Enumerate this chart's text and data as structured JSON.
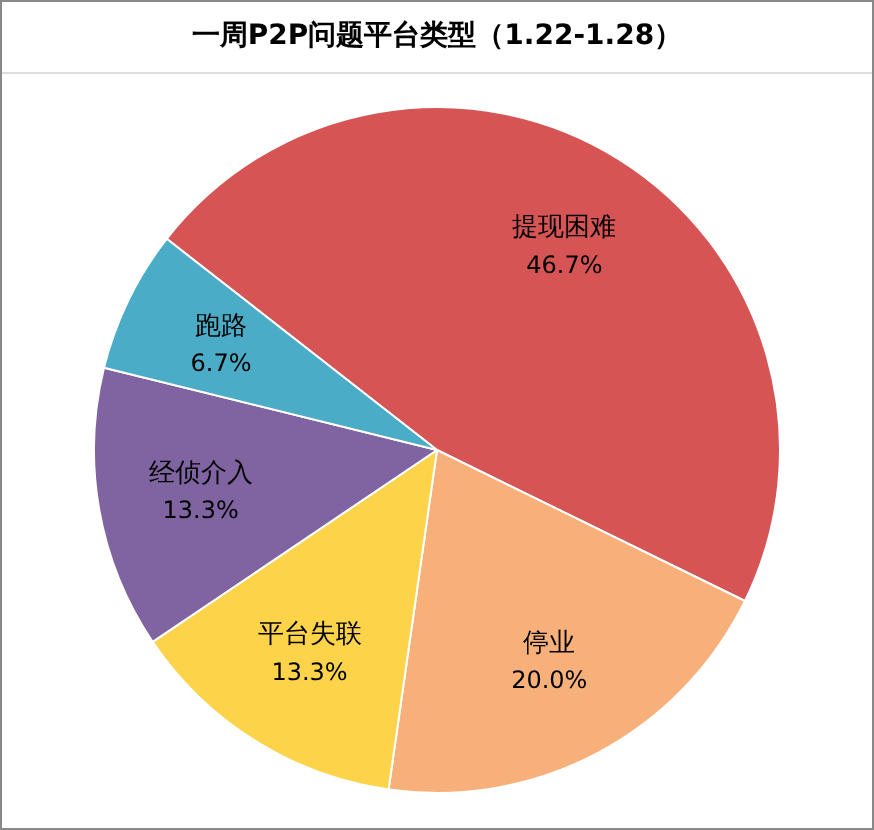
{
  "chart_data": {
    "type": "pie",
    "title": "一周P2P问题平台类型（1.22-1.28）",
    "categories": [
      "提现困难",
      "停业",
      "平台失联",
      "经侦介入",
      "跑路"
    ],
    "values": [
      46.7,
      20.0,
      13.3,
      13.3,
      6.7
    ],
    "value_labels": [
      "46.7%",
      "20.0%",
      "13.3%",
      "13.3%",
      "6.7%"
    ],
    "colors": [
      "#d65454",
      "#f8b07b",
      "#fdd34a",
      "#8064a2",
      "#4aacc6"
    ],
    "legend": false
  }
}
